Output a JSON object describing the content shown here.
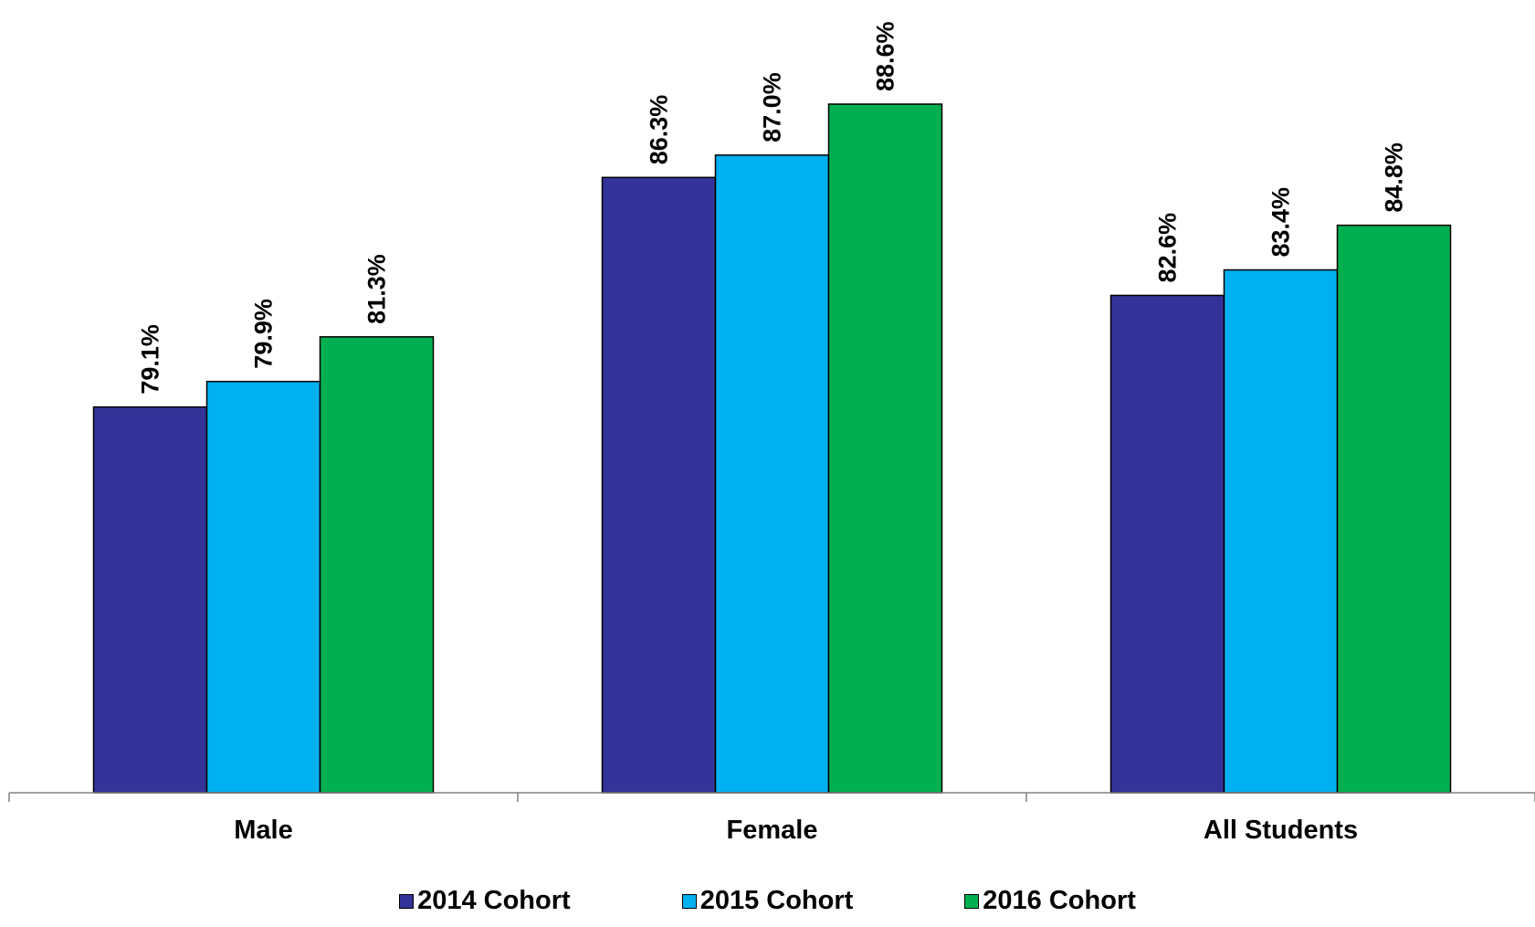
{
  "chart_data": {
    "type": "bar",
    "categories": [
      "Male",
      "Female",
      "All Students"
    ],
    "series": [
      {
        "name": "2014 Cohort",
        "color": "#333399",
        "values": [
          79.1,
          86.3,
          82.6
        ],
        "labels": [
          "79.1%",
          "86.3%",
          "82.6%"
        ]
      },
      {
        "name": "2015 Cohort",
        "color": "#00B0F0",
        "values": [
          79.9,
          87.0,
          83.4
        ],
        "labels": [
          "79.9%",
          "87.0%",
          "83.4%"
        ]
      },
      {
        "name": "2016 Cohort",
        "color": "#00B050",
        "values": [
          81.3,
          88.6,
          84.8
        ],
        "labels": [
          "81.3%",
          "88.6%",
          "84.8%"
        ]
      }
    ],
    "title": "",
    "xlabel": "",
    "ylabel": "",
    "ylim": [
      67,
      89
    ],
    "grid": false,
    "legend_position": "bottom"
  }
}
